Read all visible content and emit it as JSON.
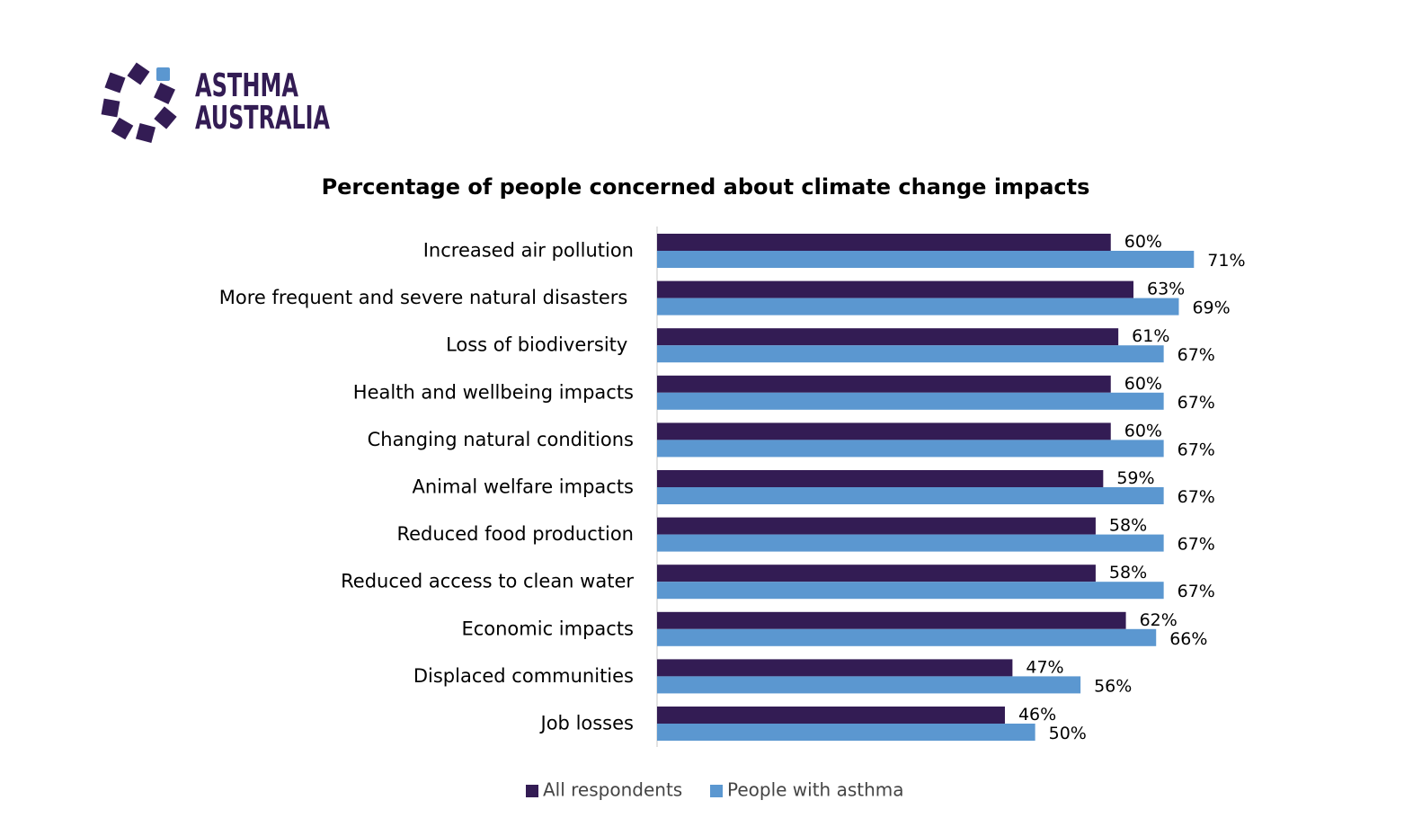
{
  "logo_text": [
    "ASTHMA",
    "AUSTRALIA"
  ],
  "chart_data": {
    "type": "bar",
    "orientation": "horizontal",
    "title": "Percentage of people concerned about climate change impacts",
    "categories": [
      "Increased air pollution",
      "More frequent and severe natural disasters ",
      "Loss of biodiversity ",
      "Health and wellbeing impacts",
      "Changing natural conditions",
      "Animal welfare impacts",
      "Reduced food production",
      "Reduced access to clean water",
      "Economic impacts",
      "Displaced communities",
      "Job losses"
    ],
    "series": [
      {
        "name": "All respondents",
        "color": "#331c54",
        "values": [
          60,
          63,
          61,
          60,
          60,
          59,
          58,
          58,
          62,
          47,
          46
        ],
        "value_labels": [
          "60%",
          "63%",
          "61%",
          "60%",
          "60%",
          "59%",
          "58%",
          "58%",
          "62%",
          "47%",
          "46%"
        ]
      },
      {
        "name": "People with asthma",
        "color": "#5b97d0",
        "values": [
          71,
          69,
          67,
          67,
          67,
          67,
          67,
          67,
          66,
          56,
          50
        ],
        "value_labels": [
          "71%",
          "69%",
          "67%",
          "67%",
          "67%",
          "67%",
          "67%",
          "67%",
          "66%",
          "56%",
          "50%"
        ]
      }
    ],
    "xlim": [
      0,
      80
    ],
    "legend": "bottom"
  }
}
